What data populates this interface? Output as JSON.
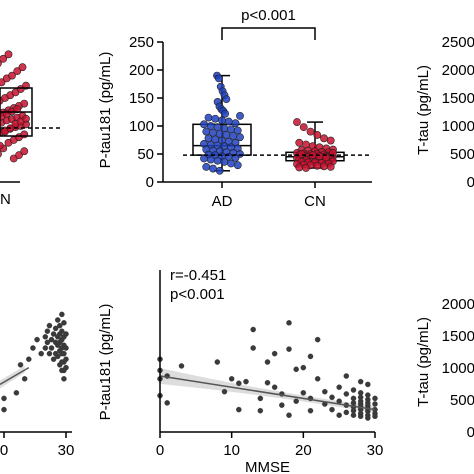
{
  "figure": {
    "top_left_partial": {
      "tick_label_x": "N"
    },
    "top_right_partial": {
      "ylabel": "T-tau (pg/mL)",
      "ytick_labels": [
        "2500",
        "2000",
        "1500",
        "1000",
        "500",
        "0"
      ]
    },
    "bottom_left_partial": {
      "xtick_labels": [
        "0",
        "30"
      ]
    },
    "bottom_right_partial": {
      "ylabel": "T-tau (pg/mL)",
      "ytick_labels": [
        "2000",
        "1500",
        "1000",
        "500",
        "0"
      ]
    }
  },
  "chart_data": [
    {
      "type": "box",
      "ylabel": "P-tau181 (pg/mL)",
      "ylim": [
        0,
        250
      ],
      "yticks": [
        0,
        50,
        100,
        150,
        200,
        250
      ],
      "categories": [
        "AD",
        "CN"
      ],
      "significance": "p<0.001",
      "reference_line": 48,
      "colors": {
        "AD": "#1f3fbf",
        "CN": "#c8102e"
      },
      "boxes": [
        {
          "name": "AD",
          "min": 20,
          "q1": 48,
          "median": 65,
          "q3": 103,
          "max": 190,
          "points": [
            190,
            185,
            170,
            162,
            155,
            148,
            143,
            135,
            130,
            127,
            122,
            118,
            115,
            113,
            110,
            108,
            105,
            103,
            100,
            98,
            96,
            94,
            92,
            90,
            88,
            86,
            84,
            82,
            80,
            78,
            76,
            74,
            72,
            70,
            68,
            66,
            65,
            64,
            62,
            60,
            58,
            56,
            55,
            53,
            52,
            50,
            49,
            48,
            46,
            45,
            43,
            42,
            40,
            38,
            36,
            33,
            30,
            27,
            24,
            20
          ]
        },
        {
          "name": "CN",
          "min": 25,
          "q1": 38,
          "median": 45,
          "q3": 53,
          "max": 107,
          "points": [
            107,
            98,
            90,
            84,
            78,
            74,
            70,
            67,
            64,
            62,
            60,
            58,
            57,
            56,
            55,
            54,
            53,
            52,
            51,
            50,
            50,
            49,
            48,
            48,
            47,
            47,
            46,
            46,
            45,
            45,
            45,
            44,
            44,
            43,
            43,
            42,
            42,
            41,
            41,
            40,
            40,
            39,
            39,
            38,
            38,
            37,
            36,
            35,
            35,
            34,
            33,
            32,
            31,
            30,
            29,
            28,
            27,
            26,
            25,
            48,
            46,
            44,
            52,
            50
          ]
        }
      ]
    },
    {
      "type": "scatter",
      "xlabel": "MMSE",
      "ylabel": "P-tau181 (pg/mL)",
      "xlim": [
        0,
        30
      ],
      "ylim": [
        0,
        250
      ],
      "xticks": [
        0,
        10,
        20,
        30
      ],
      "yticks": [
        0,
        50,
        100,
        150,
        200,
        250
      ],
      "annotation": [
        "r=-0.451",
        "p<0.001"
      ],
      "fit": {
        "x0": 0,
        "y0": 100,
        "x1": 30,
        "y1": 40
      },
      "points": [
        [
          0,
          130
        ],
        [
          0,
          110
        ],
        [
          0,
          95
        ],
        [
          0,
          65
        ],
        [
          1,
          100
        ],
        [
          1,
          52
        ],
        [
          3,
          118
        ],
        [
          8,
          125
        ],
        [
          9,
          72
        ],
        [
          10,
          95
        ],
        [
          11,
          87
        ],
        [
          11,
          40
        ],
        [
          12,
          90
        ],
        [
          13,
          183
        ],
        [
          13,
          150
        ],
        [
          14,
          60
        ],
        [
          14,
          38
        ],
        [
          15,
          125
        ],
        [
          15,
          88
        ],
        [
          16,
          140
        ],
        [
          16,
          80
        ],
        [
          17,
          68
        ],
        [
          17,
          48
        ],
        [
          18,
          195
        ],
        [
          18,
          148
        ],
        [
          18,
          30
        ],
        [
          19,
          112
        ],
        [
          19,
          55
        ],
        [
          20,
          115
        ],
        [
          20,
          70
        ],
        [
          21,
          135
        ],
        [
          21,
          60
        ],
        [
          21,
          38
        ],
        [
          22,
          165
        ],
        [
          22,
          95
        ],
        [
          23,
          72
        ],
        [
          23,
          50
        ],
        [
          24,
          62
        ],
        [
          24,
          40
        ],
        [
          25,
          80
        ],
        [
          25,
          55
        ],
        [
          25,
          30
        ],
        [
          26,
          100
        ],
        [
          26,
          68
        ],
        [
          26,
          48
        ],
        [
          26,
          35
        ],
        [
          27,
          75
        ],
        [
          27,
          60
        ],
        [
          27,
          52
        ],
        [
          27,
          45
        ],
        [
          27,
          38
        ],
        [
          27,
          30
        ],
        [
          28,
          90
        ],
        [
          28,
          70
        ],
        [
          28,
          62
        ],
        [
          28,
          55
        ],
        [
          28,
          50
        ],
        [
          28,
          45
        ],
        [
          28,
          40
        ],
        [
          28,
          33
        ],
        [
          28,
          28
        ],
        [
          29,
          85
        ],
        [
          29,
          66
        ],
        [
          29,
          58
        ],
        [
          29,
          52
        ],
        [
          29,
          47
        ],
        [
          29,
          42
        ],
        [
          29,
          37
        ],
        [
          29,
          30
        ],
        [
          29,
          25
        ],
        [
          30,
          60
        ],
        [
          30,
          50
        ],
        [
          30,
          40
        ],
        [
          30,
          33
        ],
        [
          30,
          28
        ]
      ]
    },
    {
      "type": "scatter",
      "partial": true,
      "xlabel": "",
      "xticks": [
        0,
        30
      ],
      "points": [
        [
          0,
          60
        ],
        [
          0,
          40
        ],
        [
          6,
          70
        ],
        [
          8,
          120
        ],
        [
          10,
          95
        ],
        [
          12,
          130
        ],
        [
          14,
          150
        ],
        [
          16,
          165
        ],
        [
          18,
          140
        ],
        [
          20,
          170
        ],
        [
          20,
          150
        ],
        [
          21,
          180
        ],
        [
          21,
          160
        ],
        [
          22,
          190
        ],
        [
          22,
          140
        ],
        [
          23,
          165
        ],
        [
          23,
          150
        ],
        [
          24,
          175
        ],
        [
          24,
          130
        ],
        [
          25,
          185
        ],
        [
          25,
          160
        ],
        [
          25,
          140
        ],
        [
          26,
          200
        ],
        [
          26,
          170
        ],
        [
          26,
          155
        ],
        [
          26,
          135
        ],
        [
          27,
          190
        ],
        [
          27,
          175
        ],
        [
          27,
          160
        ],
        [
          27,
          145
        ],
        [
          27,
          120
        ],
        [
          28,
          210
        ],
        [
          28,
          180
        ],
        [
          28,
          165
        ],
        [
          28,
          150
        ],
        [
          28,
          140
        ],
        [
          28,
          125
        ],
        [
          28,
          110
        ],
        [
          29,
          195
        ],
        [
          29,
          170
        ],
        [
          29,
          155
        ],
        [
          29,
          140
        ],
        [
          29,
          125
        ],
        [
          29,
          110
        ],
        [
          29,
          95
        ],
        [
          30,
          175
        ],
        [
          30,
          150
        ],
        [
          30,
          130
        ],
        [
          30,
          115
        ]
      ]
    }
  ]
}
